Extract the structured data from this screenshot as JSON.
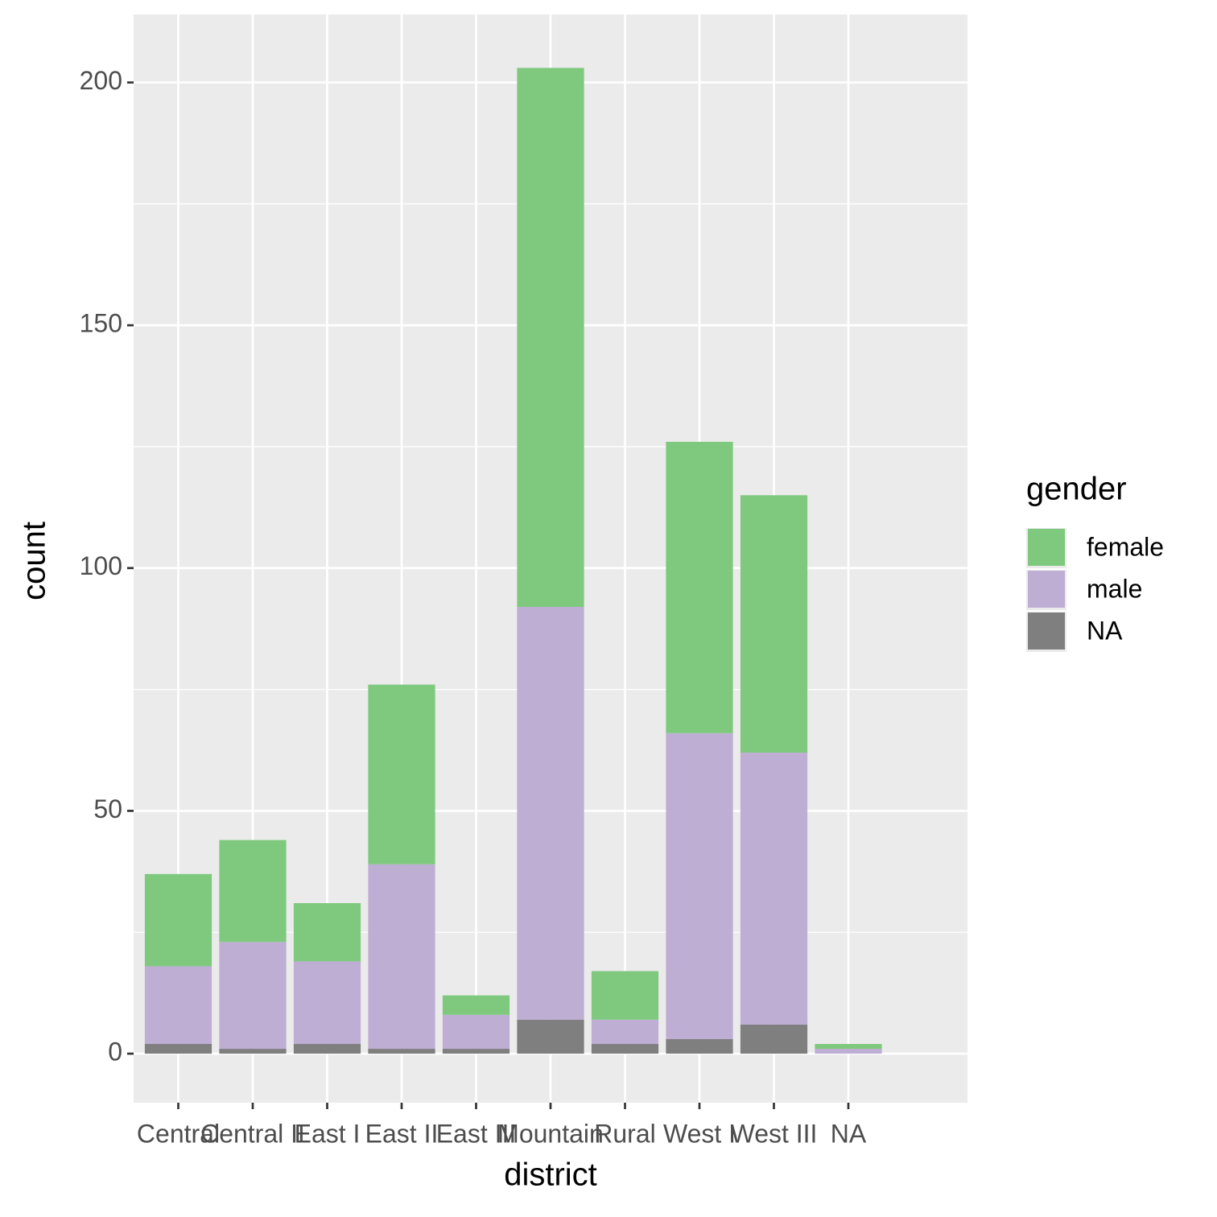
{
  "chart_data": {
    "type": "stacked-bar",
    "x_label": "district",
    "y_label": "count",
    "legend_title": "gender",
    "categories": [
      "Central",
      "Central II",
      "East I",
      "East II",
      "East III",
      "Mountain",
      "Rural",
      "West I",
      "West III",
      "NA"
    ],
    "series": [
      {
        "name": "female",
        "color": "#7fc97f",
        "values": [
          19,
          21,
          12,
          37,
          4,
          111,
          10,
          60,
          53,
          1
        ]
      },
      {
        "name": "male",
        "color": "#beaed4",
        "values": [
          16,
          22,
          17,
          38,
          7,
          85,
          5,
          63,
          56,
          1
        ]
      },
      {
        "name": "NA",
        "color": "#7f7f7f",
        "values": [
          2,
          1,
          2,
          1,
          1,
          7,
          2,
          3,
          6,
          0
        ]
      }
    ],
    "ylim": [
      -10.1,
      214
    ],
    "yticks": [
      0,
      50,
      100,
      150,
      200
    ],
    "grid": true,
    "legend": "right"
  }
}
